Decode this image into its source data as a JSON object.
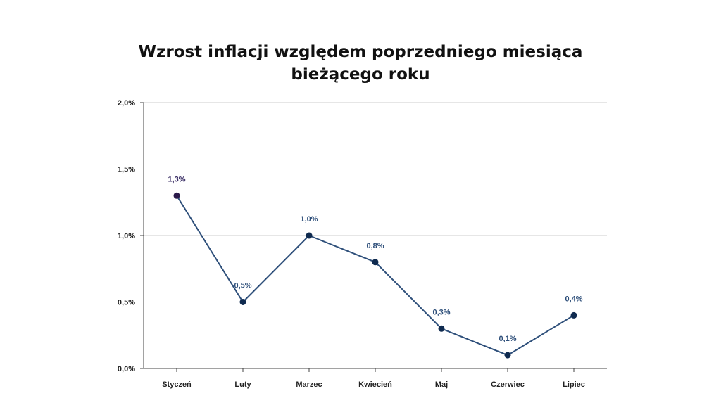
{
  "chart_data": {
    "type": "line",
    "title_lines": [
      "Wzrost inflacji względem poprzedniego miesiąca",
      "bieżącego roku"
    ],
    "categories": [
      "Styczeń",
      "Luty",
      "Marzec",
      "Kwiecień",
      "Maj",
      "Czerwiec",
      "Lipiec"
    ],
    "series": [
      {
        "values": [
          1.3,
          0.5,
          1.0,
          0.8,
          0.3,
          0.1,
          0.4
        ]
      }
    ],
    "data_labels": [
      "1,3%",
      "0,5%",
      "1,0%",
      "0,8%",
      "0,3%",
      "0,1%",
      "0,4%"
    ],
    "y_ticks": [
      0,
      0.5,
      1.0,
      1.5,
      2.0
    ],
    "y_tick_labels": [
      "0,0%",
      "0,5%",
      "1,0%",
      "1,5%",
      "2,0%"
    ],
    "ylim": [
      0,
      2.0
    ],
    "grid": "horizontal",
    "colors": {
      "line": "#2e4f7a",
      "marker": "#0f2a4f",
      "first_marker": "#2b1a4a",
      "label": "#2e4f7a",
      "first_label": "#3b2f66",
      "grid": "#cccccc",
      "axis": "#444444"
    }
  }
}
